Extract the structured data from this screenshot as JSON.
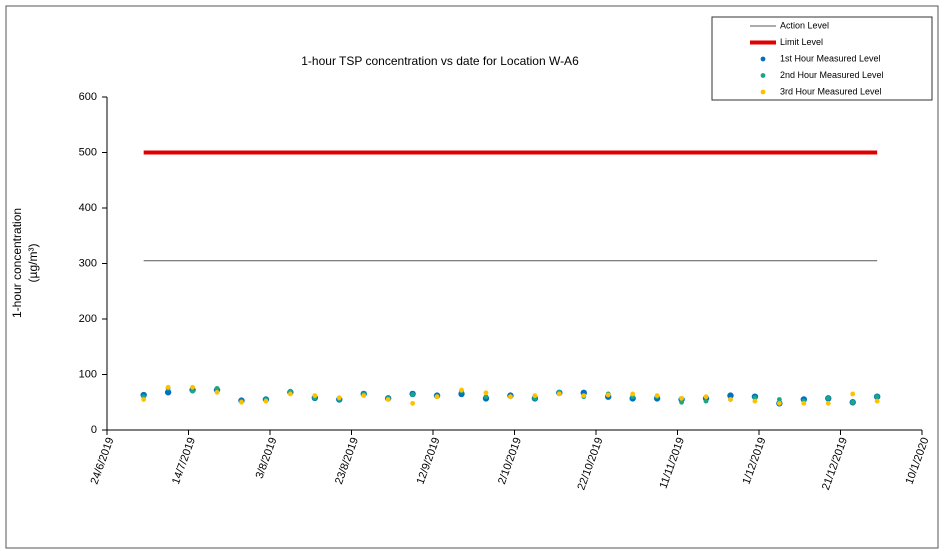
{
  "chart_data": {
    "type": "scatter",
    "title": "1-hour TSP concentration vs date for Location  W-A6",
    "y_label": "1-hour concentration",
    "y_unit": "(µg/m³)",
    "xlim": [
      "24/6/2019",
      "10/1/2020"
    ],
    "xticks": [
      "24/6/2019",
      "14/7/2019",
      "3/8/2019",
      "23/8/2019",
      "12/9/2019",
      "2/10/2019",
      "22/10/2019",
      "11/11/2019",
      "1/12/2019",
      "21/12/2019",
      "10/1/2020"
    ],
    "ylim": [
      0,
      600
    ],
    "yticks": [
      0,
      100,
      200,
      300,
      400,
      500,
      600
    ],
    "legend": "top-right",
    "series": [
      {
        "name": "Action Level",
        "mode": "line",
        "color": "#595959",
        "x": [
          "3/7/2019",
          "30/12/2019"
        ],
        "values": [
          305,
          305
        ]
      },
      {
        "name": "Limit Level",
        "mode": "line",
        "color": "#e00000",
        "x": [
          "3/7/2019",
          "30/12/2019"
        ],
        "values": [
          500,
          500
        ]
      },
      {
        "name": "1st Hour Measured Level",
        "mode": "marker",
        "color": "#0070c0",
        "x": [
          "3/7/2019",
          "9/7/2019",
          "15/7/2019",
          "21/7/2019",
          "27/7/2019",
          "2/8/2019",
          "8/8/2019",
          "14/8/2019",
          "20/8/2019",
          "26/8/2019",
          "1/9/2019",
          "7/9/2019",
          "13/9/2019",
          "19/9/2019",
          "25/9/2019",
          "1/10/2019",
          "7/10/2019",
          "13/10/2019",
          "19/10/2019",
          "25/10/2019",
          "31/10/2019",
          "6/11/2019",
          "12/11/2019",
          "18/11/2019",
          "24/11/2019",
          "30/11/2019",
          "6/12/2019",
          "12/12/2019",
          "18/12/2019",
          "24/12/2019",
          "30/12/2019"
        ],
        "values": [
          63,
          68,
          72,
          72,
          53,
          55,
          68,
          58,
          55,
          65,
          57,
          65,
          62,
          65,
          57,
          62,
          57,
          67,
          67,
          60,
          57,
          57,
          55,
          57,
          62,
          60,
          48,
          55,
          57,
          50,
          60
        ]
      },
      {
        "name": "2nd Hour Measured Level",
        "mode": "marker",
        "color": "#1aa884",
        "x": [
          "3/7/2019",
          "9/7/2019",
          "15/7/2019",
          "21/7/2019",
          "27/7/2019",
          "2/8/2019",
          "8/8/2019",
          "14/8/2019",
          "20/8/2019",
          "26/8/2019",
          "1/9/2019",
          "7/9/2019",
          "13/9/2019",
          "19/9/2019",
          "25/9/2019",
          "1/10/2019",
          "7/10/2019",
          "13/10/2019",
          "19/10/2019",
          "25/10/2019",
          "31/10/2019",
          "6/11/2019",
          "12/11/2019",
          "18/11/2019",
          "24/11/2019",
          "30/11/2019",
          "6/12/2019",
          "12/12/2019",
          "18/12/2019",
          "24/12/2019",
          "30/12/2019"
        ],
        "values": [
          60,
          75,
          70,
          75,
          52,
          55,
          70,
          58,
          55,
          65,
          57,
          64,
          60,
          70,
          60,
          60,
          57,
          68,
          60,
          65,
          60,
          60,
          50,
          52,
          55,
          58,
          55,
          52,
          57,
          50,
          60
        ]
      },
      {
        "name": "3rd Hour Measured Level",
        "mode": "marker",
        "color": "#ffc000",
        "x": [
          "3/7/2019",
          "9/7/2019",
          "15/7/2019",
          "21/7/2019",
          "27/7/2019",
          "2/8/2019",
          "8/8/2019",
          "14/8/2019",
          "20/8/2019",
          "26/8/2019",
          "1/9/2019",
          "7/9/2019",
          "13/9/2019",
          "19/9/2019",
          "25/9/2019",
          "1/10/2019",
          "7/10/2019",
          "13/10/2019",
          "19/10/2019",
          "25/10/2019",
          "31/10/2019",
          "6/11/2019",
          "12/11/2019",
          "18/11/2019",
          "24/11/2019",
          "30/11/2019",
          "6/12/2019",
          "12/12/2019",
          "18/12/2019",
          "24/12/2019",
          "30/12/2019"
        ],
        "values": [
          55,
          77,
          77,
          68,
          50,
          52,
          65,
          62,
          58,
          62,
          55,
          48,
          60,
          72,
          67,
          60,
          62,
          65,
          62,
          63,
          65,
          62,
          57,
          60,
          55,
          52,
          48,
          48,
          48,
          65,
          52
        ]
      }
    ]
  }
}
